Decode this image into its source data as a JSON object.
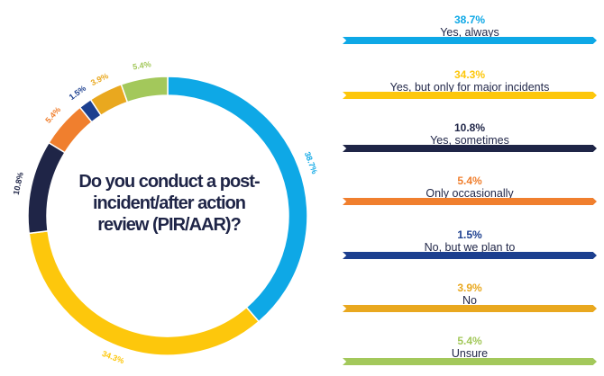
{
  "chart_data": {
    "type": "pie",
    "title": "Do you conduct a post-incident/after action review (PIR/AAR)?",
    "categories": [
      "Yes, always",
      "Yes, but only for major incidents",
      "Yes, sometimes",
      "Only occasionally",
      "No, but we plan to",
      "No",
      "Unsure"
    ],
    "values": [
      38.7,
      34.3,
      10.8,
      5.4,
      1.5,
      3.9,
      5.4
    ],
    "labels": [
      "38.7%",
      "34.3%",
      "10.8%",
      "5.4%",
      "1.5%",
      "3.9%",
      "5.4%"
    ],
    "colors": [
      "#0ea8e6",
      "#fdc70c",
      "#1f2547",
      "#f07f2e",
      "#1c3f8f",
      "#e9a81f",
      "#a3c85b"
    ],
    "donut": true,
    "legend": "right"
  }
}
